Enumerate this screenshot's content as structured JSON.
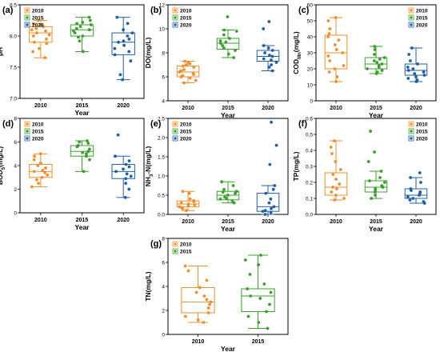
{
  "colors": {
    "2010": "#f28e2b",
    "2015": "#3aa02b",
    "2020": "#1f5fa8"
  },
  "chart_data": [
    {
      "panel": "(a)",
      "type": "box",
      "xlabel": "Year",
      "ylabel": "pH",
      "ylim": [
        7.0,
        8.5
      ],
      "yticks": [
        "7.0",
        "7.5",
        "8.0",
        "8.5"
      ],
      "categories": [
        "2010",
        "2015",
        "2020"
      ],
      "legend": [
        "2010",
        "2015",
        "2020"
      ],
      "legend_position": "top-left",
      "boxes": [
        {
          "name": "2010",
          "q1": 7.9,
          "median": 8.05,
          "q3": 8.15,
          "whisker_low": 7.65,
          "whisker_high": 8.25,
          "points": [
            7.65,
            7.75,
            7.8,
            7.88,
            7.9,
            7.95,
            8.0,
            8.02,
            8.05,
            8.08,
            8.1,
            8.12,
            8.15,
            8.18,
            8.2,
            8.25
          ]
        },
        {
          "name": "2015",
          "q1": 8.0,
          "median": 8.1,
          "q3": 8.18,
          "whisker_low": 7.75,
          "whisker_high": 8.3,
          "points": [
            7.75,
            7.92,
            7.98,
            8.0,
            8.05,
            8.08,
            8.1,
            8.12,
            8.15,
            8.18,
            8.2,
            8.22,
            8.25,
            8.3
          ]
        },
        {
          "name": "2020",
          "q1": 7.7,
          "median": 7.9,
          "q3": 8.05,
          "whisker_low": 7.3,
          "whisker_high": 8.3,
          "points": [
            7.3,
            7.38,
            7.6,
            7.7,
            7.75,
            7.8,
            7.85,
            7.9,
            7.92,
            7.95,
            8.0,
            8.05,
            8.1,
            8.2,
            8.3
          ]
        }
      ]
    },
    {
      "panel": "(b)",
      "type": "box",
      "xlabel": "Year",
      "ylabel": "DO(mg/L)",
      "ylim": [
        4,
        12
      ],
      "yticks": [
        "4",
        "6",
        "8",
        "10",
        "12"
      ],
      "categories": [
        "2010",
        "2015",
        "2020"
      ],
      "legend": [
        "2010",
        "2015",
        "2020"
      ],
      "legend_position": "top-left",
      "boxes": [
        {
          "name": "2010",
          "q1": 6.0,
          "median": 6.4,
          "q3": 6.9,
          "whisker_low": 5.5,
          "whisker_high": 7.3,
          "points": [
            5.5,
            5.7,
            5.9,
            6.0,
            6.1,
            6.2,
            6.3,
            6.4,
            6.5,
            6.6,
            6.8,
            6.9,
            7.0,
            7.1,
            7.2,
            7.3
          ]
        },
        {
          "name": "2015",
          "q1": 8.3,
          "median": 8.8,
          "q3": 9.2,
          "whisker_low": 7.6,
          "whisker_high": 9.9,
          "points": [
            7.6,
            7.9,
            8.2,
            8.4,
            8.6,
            8.8,
            8.9,
            9.0,
            9.2,
            9.5,
            9.8,
            9.9,
            11.0
          ]
        },
        {
          "name": "2020",
          "q1": 7.3,
          "median": 7.7,
          "q3": 8.2,
          "whisker_low": 6.5,
          "whisker_high": 8.6,
          "points": [
            6.5,
            6.8,
            7.0,
            7.2,
            7.4,
            7.5,
            7.7,
            7.8,
            8.0,
            8.2,
            8.4,
            8.6,
            10.0,
            10.6
          ]
        }
      ]
    },
    {
      "panel": "(c)",
      "type": "box",
      "xlabel": "Year",
      "ylabel": "COD",
      "ylabel_sub": "Mn",
      "ylabel_suffix": "(mg/L)",
      "ylim": [
        0,
        60
      ],
      "yticks": [
        "0",
        "10",
        "20",
        "30",
        "40",
        "50",
        "60"
      ],
      "categories": [
        "2010",
        "2015",
        "2020"
      ],
      "legend": [
        "2010",
        "2015",
        "2020"
      ],
      "legend_position": "top-right",
      "boxes": [
        {
          "name": "2010",
          "q1": 20,
          "median": 30,
          "q3": 41,
          "whisker_low": 12,
          "whisker_high": 52,
          "points": [
            12,
            15,
            18,
            20,
            22,
            25,
            28,
            30,
            32,
            35,
            38,
            40,
            42,
            45,
            50,
            52
          ]
        },
        {
          "name": "2015",
          "q1": 20,
          "median": 23,
          "q3": 27,
          "whisker_low": 17,
          "whisker_high": 34,
          "points": [
            17,
            18,
            19,
            20,
            21,
            22,
            23,
            24,
            25,
            26,
            27,
            29,
            32,
            34
          ]
        },
        {
          "name": "2020",
          "q1": 16,
          "median": 19,
          "q3": 23,
          "whisker_low": 12,
          "whisker_high": 33,
          "points": [
            12,
            13,
            14,
            15,
            16,
            17,
            18,
            19,
            20,
            21,
            23,
            25,
            29,
            33
          ]
        }
      ]
    },
    {
      "panel": "(d)",
      "type": "box",
      "xlabel": "Year",
      "ylabel": "BOD",
      "ylabel_sub": "5",
      "ylabel_suffix": "(mg/L)",
      "ylim": [
        0,
        8
      ],
      "yticks": [
        "0",
        "2",
        "4",
        "6",
        "8"
      ],
      "categories": [
        "2010",
        "2015",
        "2020"
      ],
      "legend": [
        "2010",
        "2015",
        "2020"
      ],
      "legend_position": "top-left",
      "boxes": [
        {
          "name": "2010",
          "q1": 3.0,
          "median": 3.5,
          "q3": 4.1,
          "whisker_low": 2.2,
          "whisker_high": 5.0,
          "points": [
            2.2,
            2.5,
            2.8,
            3.0,
            3.2,
            3.4,
            3.5,
            3.6,
            3.8,
            4.0,
            4.2,
            4.5,
            4.8,
            5.0
          ]
        },
        {
          "name": "2015",
          "q1": 4.8,
          "median": 5.2,
          "q3": 5.7,
          "whisker_low": 3.5,
          "whisker_high": 6.1,
          "points": [
            3.5,
            4.5,
            4.8,
            5.0,
            5.1,
            5.2,
            5.4,
            5.6,
            5.7,
            5.9,
            6.0,
            6.1
          ]
        },
        {
          "name": "2020",
          "q1": 2.9,
          "median": 3.5,
          "q3": 4.1,
          "whisker_low": 1.3,
          "whisker_high": 4.8,
          "points": [
            1.3,
            2.0,
            2.5,
            2.9,
            3.1,
            3.3,
            3.5,
            3.7,
            3.9,
            4.1,
            4.4,
            4.8,
            6.6
          ]
        }
      ]
    },
    {
      "panel": "(e)",
      "type": "box",
      "xlabel": "Year",
      "ylabel": "NH",
      "ylabel_sub": "3",
      "ylabel_suffix": "-N(mg/L)",
      "ylim": [
        0.0,
        2.5
      ],
      "yticks": [
        "0.0",
        "0.5",
        "1.0",
        "1.5",
        "2.0",
        "2.5"
      ],
      "categories": [
        "2010",
        "2015",
        "2020"
      ],
      "legend": [
        "2010",
        "2015",
        "2020"
      ],
      "legend_position": "top-left",
      "boxes": [
        {
          "name": "2010",
          "q1": 0.2,
          "median": 0.27,
          "q3": 0.35,
          "whisker_low": 0.1,
          "whisker_high": 0.6,
          "points": [
            0.1,
            0.15,
            0.18,
            0.2,
            0.22,
            0.25,
            0.27,
            0.3,
            0.33,
            0.36,
            0.4,
            0.55,
            0.6
          ]
        },
        {
          "name": "2015",
          "q1": 0.38,
          "median": 0.5,
          "q3": 0.6,
          "whisker_low": 0.3,
          "whisker_high": 0.85,
          "points": [
            0.3,
            0.35,
            0.4,
            0.42,
            0.45,
            0.5,
            0.55,
            0.58,
            0.6,
            0.65,
            0.75,
            0.85
          ]
        },
        {
          "name": "2020",
          "q1": 0.08,
          "median": 0.2,
          "q3": 0.55,
          "whisker_low": 0.0,
          "whisker_high": 0.75,
          "points": [
            0.0,
            0.05,
            0.08,
            0.1,
            0.15,
            0.2,
            0.3,
            0.4,
            0.55,
            0.65,
            0.75,
            1.3,
            1.8,
            2.4
          ]
        }
      ]
    },
    {
      "panel": "(f)",
      "type": "box",
      "xlabel": "Year",
      "ylabel": "TP(mg/L)",
      "ylim": [
        0.0,
        0.6
      ],
      "yticks": [
        "0.0",
        "0.1",
        "0.2",
        "0.3",
        "0.4",
        "0.5",
        "0.6"
      ],
      "categories": [
        "2010",
        "2015",
        "2020"
      ],
      "legend": [
        "2010",
        "2015",
        "2020"
      ],
      "legend_position": "top-right",
      "boxes": [
        {
          "name": "2010",
          "q1": 0.12,
          "median": 0.17,
          "q3": 0.26,
          "whisker_low": 0.09,
          "whisker_high": 0.46,
          "points": [
            0.09,
            0.1,
            0.12,
            0.14,
            0.16,
            0.17,
            0.19,
            0.22,
            0.25,
            0.28,
            0.33,
            0.38,
            0.42,
            0.46
          ]
        },
        {
          "name": "2015",
          "q1": 0.14,
          "median": 0.17,
          "q3": 0.21,
          "whisker_low": 0.1,
          "whisker_high": 0.27,
          "points": [
            0.1,
            0.12,
            0.14,
            0.15,
            0.16,
            0.17,
            0.18,
            0.2,
            0.21,
            0.23,
            0.27,
            0.33,
            0.39,
            0.52
          ]
        },
        {
          "name": "2020",
          "q1": 0.1,
          "median": 0.12,
          "q3": 0.16,
          "whisker_low": 0.07,
          "whisker_high": 0.23,
          "points": [
            0.07,
            0.08,
            0.09,
            0.1,
            0.11,
            0.12,
            0.13,
            0.14,
            0.15,
            0.16,
            0.2,
            0.23,
            0.26
          ]
        }
      ]
    },
    {
      "panel": "(g)",
      "type": "box",
      "xlabel": "Year",
      "ylabel": "TN(mg/L)",
      "ylim": [
        0,
        8
      ],
      "yticks": [
        "0",
        "2",
        "4",
        "6",
        "8"
      ],
      "categories": [
        "2010",
        "2015"
      ],
      "legend": [
        "2010",
        "2015"
      ],
      "legend_position": "top-left",
      "boxes": [
        {
          "name": "2010",
          "q1": 1.8,
          "median": 2.7,
          "q3": 3.9,
          "whisker_low": 1.0,
          "whisker_high": 5.7,
          "points": [
            1.0,
            1.2,
            1.5,
            1.8,
            2.2,
            2.5,
            2.7,
            2.9,
            3.2,
            3.5,
            3.9,
            4.5,
            5.3,
            5.7
          ]
        },
        {
          "name": "2015",
          "q1": 1.9,
          "median": 3.2,
          "q3": 3.8,
          "whisker_low": 0.5,
          "whisker_high": 6.6,
          "points": [
            0.5,
            1.0,
            1.5,
            1.9,
            2.5,
            3.0,
            3.2,
            3.5,
            3.8,
            4.2,
            5.0,
            5.8,
            6.2,
            6.6
          ]
        }
      ]
    }
  ]
}
